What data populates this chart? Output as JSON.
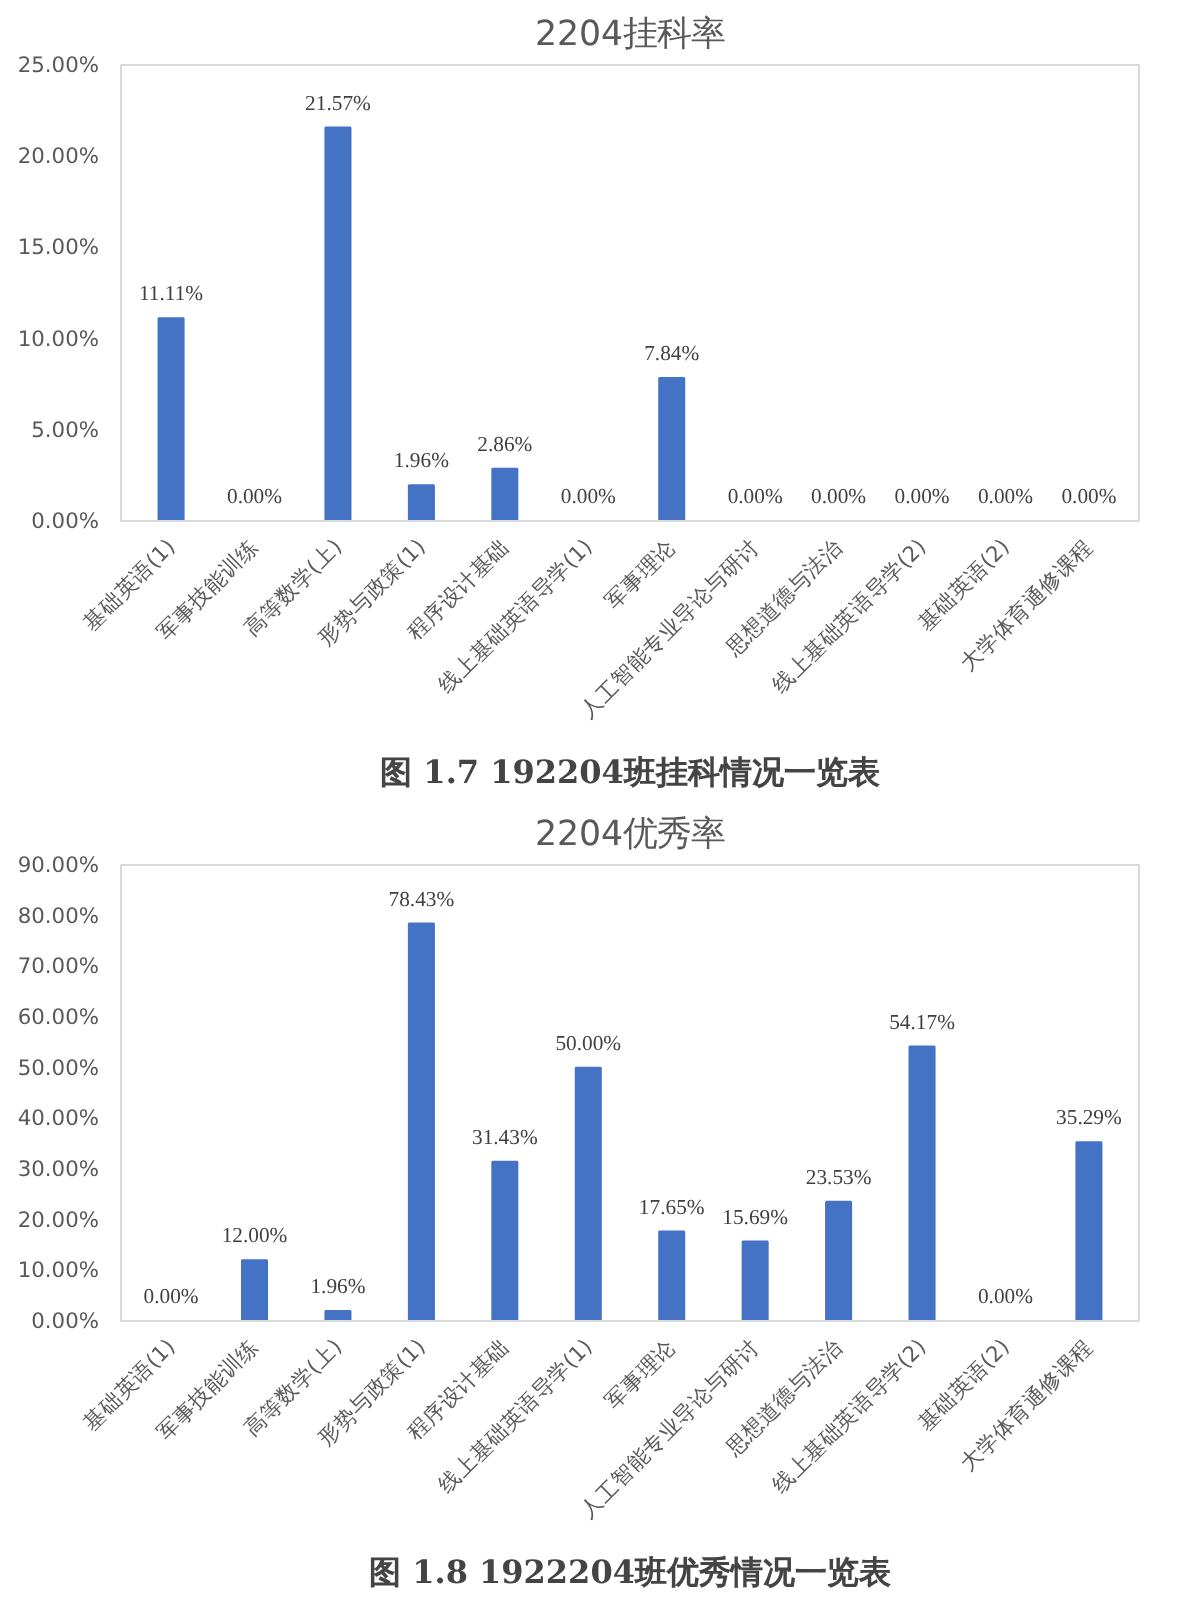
{
  "chart_data": [
    {
      "type": "bar",
      "title": "2204挂科率",
      "annotations": [
        "图 1.7 192204班挂科情况一览表"
      ],
      "categories": [
        "基础英语(1)",
        "军事技能训练",
        "高等数学(上)",
        "形势与政策(1)",
        "程序设计基础",
        "线上基础英语导学(1)",
        "军事理论",
        "人工智能专业导论与研讨",
        "思想道德与法治",
        "线上基础英语导学(2)",
        "基础英语(2)",
        "大学体育通修课程"
      ],
      "values": [
        11.11,
        0,
        21.57,
        1.96,
        2.86,
        0,
        7.84,
        0,
        0,
        0,
        0,
        0
      ],
      "value_labels": [
        "11.11%",
        "0.00%",
        "21.57%",
        "1.96%",
        "2.86%",
        "0.00%",
        "7.84%",
        "0.00%",
        "0.00%",
        "0.00%",
        "0.00%",
        "0.00%"
      ],
      "color": "#4472c4",
      "ylim": [
        0,
        25
      ],
      "yticks": [
        {
          "value": 0,
          "label": "0.00%"
        },
        {
          "value": 5,
          "label": "5.00%"
        },
        {
          "value": 10,
          "label": "10.00%"
        },
        {
          "value": 15,
          "label": "15.00%"
        },
        {
          "value": 20,
          "label": "20.00%"
        },
        {
          "value": 25,
          "label": "25.00%"
        }
      ]
    },
    {
      "type": "bar",
      "title": "2204优秀率",
      "annotations": [
        "图 1.8 1922204班优秀情况一览表"
      ],
      "categories": [
        "基础英语(1)",
        "军事技能训练",
        "高等数学(上)",
        "形势与政策(1)",
        "程序设计基础",
        "线上基础英语导学(1)",
        "军事理论",
        "人工智能专业导论与研讨",
        "思想道德与法治",
        "线上基础英语导学(2)",
        "基础英语(2)",
        "大学体育通修课程"
      ],
      "values": [
        0,
        12,
        1.96,
        78.43,
        31.43,
        50,
        17.65,
        15.69,
        23.53,
        54.17,
        0,
        35.29
      ],
      "value_labels": [
        "0.00%",
        "12.00%",
        "1.96%",
        "78.43%",
        "31.43%",
        "50.00%",
        "17.65%",
        "15.69%",
        "23.53%",
        "54.17%",
        "0.00%",
        "35.29%"
      ],
      "color": "#4472c4",
      "ylim": [
        0,
        90
      ],
      "yticks": [
        {
          "value": 0,
          "label": "0.00%"
        },
        {
          "value": 10,
          "label": "10.00%"
        },
        {
          "value": 20,
          "label": "20.00%"
        },
        {
          "value": 30,
          "label": "30.00%"
        },
        {
          "value": 40,
          "label": "40.00%"
        },
        {
          "value": 50,
          "label": "50.00%"
        },
        {
          "value": 60,
          "label": "60.00%"
        },
        {
          "value": 70,
          "label": "70.00%"
        },
        {
          "value": 80,
          "label": "80.00%"
        },
        {
          "value": 90,
          "label": "90.00%"
        }
      ]
    }
  ]
}
